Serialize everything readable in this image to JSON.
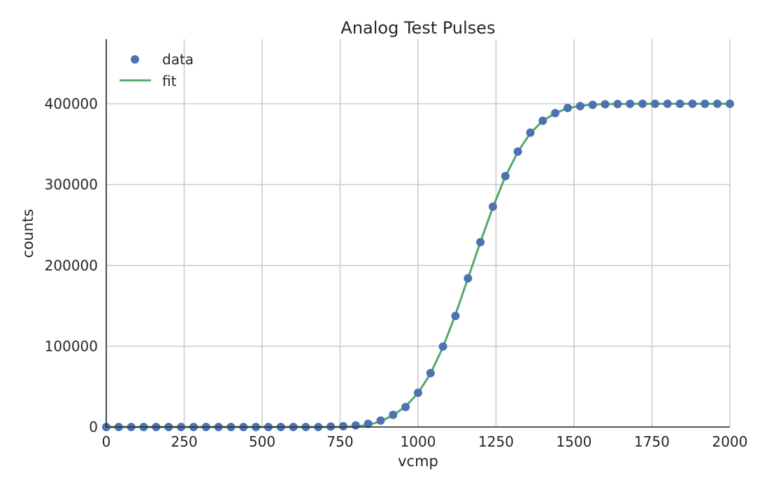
{
  "chart_data": {
    "type": "scatter",
    "title": "Analog Test Pulses",
    "xlabel": "vcmp",
    "ylabel": "counts",
    "xlim": [
      0,
      2000
    ],
    "ylim": [
      0,
      480000
    ],
    "xticks": [
      0,
      250,
      500,
      750,
      1000,
      1250,
      1500,
      1750,
      2000
    ],
    "yticks": [
      0,
      100000,
      200000,
      300000,
      400000
    ],
    "grid": true,
    "legend_position": "top-left",
    "colors": {
      "data": "#4c72b0",
      "fit": "#55a868"
    },
    "x": [
      0,
      40,
      80,
      120,
      160,
      200,
      240,
      280,
      320,
      360,
      400,
      440,
      480,
      520,
      560,
      600,
      640,
      680,
      720,
      760,
      800,
      840,
      880,
      920,
      960,
      1000,
      1040,
      1080,
      1120,
      1160,
      1200,
      1240,
      1280,
      1320,
      1360,
      1400,
      1440,
      1480,
      1520,
      1560,
      1600,
      1640,
      1680,
      1720,
      1760,
      1800,
      1840,
      1880,
      1920,
      1960,
      2000
    ],
    "series": [
      {
        "name": "data",
        "kind": "markers",
        "values": [
          0,
          0,
          0,
          0,
          0,
          0,
          0,
          0,
          0,
          0,
          0,
          0,
          0,
          0,
          0,
          0,
          0,
          0,
          500,
          1000,
          2000,
          4000,
          8000,
          15000,
          24800,
          42400,
          66700,
          99600,
          137400,
          184000,
          228800,
          272700,
          310500,
          340900,
          364300,
          379000,
          388400,
          394800,
          397100,
          398700,
          399400,
          399700,
          399900,
          400000,
          400000,
          400000,
          400000,
          400000,
          400000,
          400000,
          400000
        ]
      },
      {
        "name": "fit",
        "kind": "line",
        "values": [
          0,
          0,
          0,
          0,
          0,
          0,
          0,
          0,
          0,
          0,
          0,
          0,
          0,
          0,
          0,
          0,
          0,
          0,
          0,
          100,
          600,
          2500,
          7000,
          14500,
          25500,
          42000,
          66000,
          99000,
          139000,
          184000,
          229000,
          272000,
          310000,
          340500,
          363500,
          379000,
          388500,
          394500,
          397500,
          399000,
          399600,
          399800,
          399900,
          400000,
          400000,
          400000,
          400000,
          400000,
          400000,
          400000,
          400000
        ]
      }
    ]
  }
}
